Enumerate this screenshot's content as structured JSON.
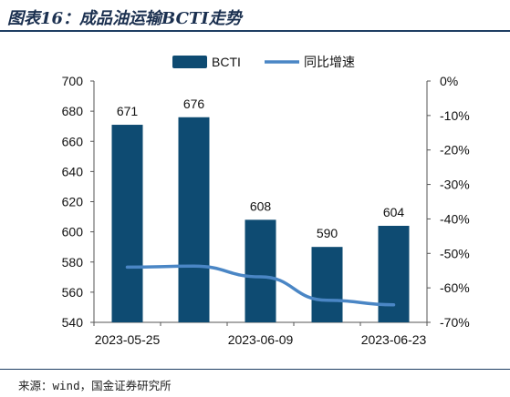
{
  "figure_title": "图表16：成品油运输BCTI走势",
  "source_note": "来源：wind，国金证券研究所",
  "colors": {
    "bar": "#0e4b72",
    "line": "#4a86c5",
    "title": "#1b3050"
  },
  "chart_data": {
    "type": "bar",
    "categories": [
      "2023-05-25",
      "",
      "2023-06-09",
      "",
      "2023-06-23"
    ],
    "x_tick_labels": [
      "2023-05-25",
      "2023-06-09",
      "2023-06-23"
    ],
    "series": [
      {
        "name": "BCTI",
        "type": "bar",
        "axis": "left",
        "values": [
          671,
          676,
          608,
          590,
          604
        ]
      },
      {
        "name": "同比增速",
        "type": "line",
        "axis": "right",
        "values": [
          -54.0,
          -53.7,
          -56.8,
          -63.6,
          -64.9
        ]
      }
    ],
    "y_left": {
      "min": 540,
      "max": 700,
      "ticks": [
        "540",
        "560",
        "580",
        "600",
        "620",
        "640",
        "660",
        "680",
        "700"
      ]
    },
    "y_right": {
      "min": -70,
      "max": 0,
      "ticks": [
        "0%",
        "-10%",
        "-20%",
        "-30%",
        "-40%",
        "-50%",
        "-60%",
        "-70%"
      ]
    },
    "legend_position": "top-center",
    "grid": false
  }
}
